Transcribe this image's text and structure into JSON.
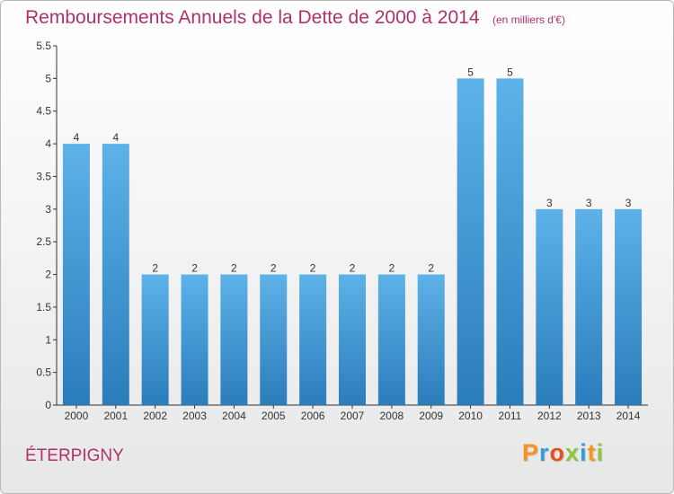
{
  "header": {
    "title": "Remboursements Annuels de la Dette de 2000 à 2014",
    "subtitle": "(en milliers d'€)"
  },
  "footer": {
    "commune": "ÉTERPIGNY",
    "logo_text": "Proxiti"
  },
  "colors": {
    "title": "#b0306b",
    "bar_top": "#5db2e8",
    "bar_bottom": "#2a7dbb",
    "logo_letters": [
      "#f7941d",
      "#2e9fd9",
      "#e94e1b",
      "#8dc63f",
      "#2e9fd9",
      "#f7941d",
      "#8dc63f"
    ]
  },
  "chart_data": {
    "type": "bar",
    "categories": [
      "2000",
      "2001",
      "2002",
      "2003",
      "2004",
      "2005",
      "2006",
      "2007",
      "2008",
      "2009",
      "2010",
      "2011",
      "2012",
      "2013",
      "2014"
    ],
    "values": [
      4,
      4,
      2,
      2,
      2,
      2,
      2,
      2,
      2,
      2,
      5,
      5,
      3,
      3,
      3
    ],
    "data_labels": [
      "4",
      "4",
      "2",
      "2",
      "2",
      "2",
      "2",
      "2",
      "2",
      "2",
      "5",
      "5",
      "3",
      "3",
      "3"
    ],
    "title": "Remboursements Annuels de la Dette de 2000 à 2014",
    "subtitle": "(en milliers d'€)",
    "xlabel": "",
    "ylabel": "",
    "ylim": [
      0,
      5.5
    ],
    "yticks": [
      "0",
      "0.5",
      "1",
      "1.5",
      "2",
      "2.5",
      "3",
      "3.5",
      "4",
      "4.5",
      "5",
      "5.5"
    ],
    "grid": false,
    "legend": "none"
  }
}
